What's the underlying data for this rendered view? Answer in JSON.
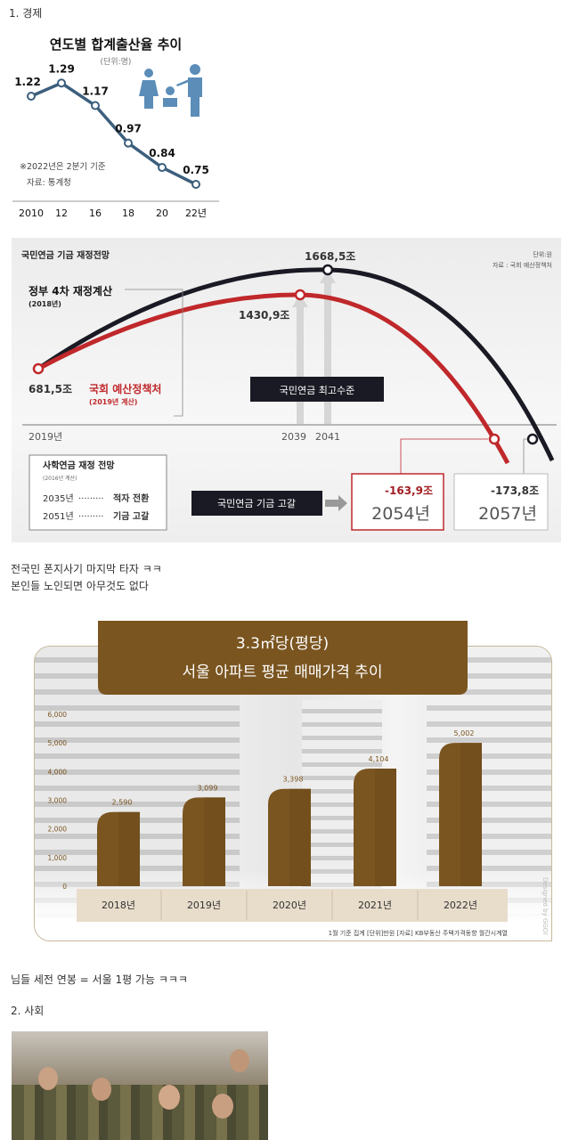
{
  "post": {
    "section1": "1. 경제",
    "comment1_line1": "전국민 폰지사기 마지막 타자 ㅋㅋ",
    "comment1_line2": "본인들 노인되면 아무것도 없다",
    "comment2": "님들 세전 연봉 = 서울 1평 가능 ㅋㅋㅋ",
    "section2": "2. 사회"
  },
  "chart_data": [
    {
      "type": "line",
      "title": "연도별 합계출산율 추이",
      "unit": "(단위:명)",
      "categories": [
        "2010",
        "12",
        "16",
        "18",
        "20",
        "22년"
      ],
      "values": [
        1.22,
        1.29,
        1.17,
        0.97,
        0.84,
        0.75
      ],
      "labels": [
        "1.22",
        "1.29",
        "1.17",
        "0.97",
        "0.84",
        "0.75"
      ],
      "note": "※2022년은 2분기 기준",
      "source": "자료: 통계청",
      "color": "#3d5f7d"
    },
    {
      "type": "line",
      "title": "국민연금 기금 재정전망",
      "unit": "단위:원",
      "source": "자료 : 국회 예산정책처",
      "series": [
        {
          "name": "정부 4차 재정계산",
          "sub": "(2018년)",
          "color": "#1a1a24",
          "points": [
            [
              2019,
              681.5
            ],
            [
              2041,
              1668.5
            ],
            [
              2057,
              -173.8
            ]
          ]
        },
        {
          "name": "국회 예산정책처",
          "sub": "(2019년 계산)",
          "color": "#c0282b",
          "points": [
            [
              2019,
              681.5
            ],
            [
              2039,
              1430.9
            ],
            [
              2054,
              -163.9
            ]
          ]
        }
      ],
      "labels": {
        "start": "681,5조",
        "peak_gov": "1668,5조",
        "peak_nabo": "1430,9조",
        "end_nabo_value": "-163,9조",
        "end_nabo_year": "2054년",
        "end_gov_value": "-173,8조",
        "end_gov_year": "2057년"
      },
      "x_ticks": [
        "2019년",
        "2039",
        "2041"
      ],
      "peak_label": "국민연금 최고수준",
      "depletion_label": "국민연금 기금 고갈",
      "private_box": {
        "title": "사학연금 재정 전망",
        "sub": "(2016년 계산)",
        "row1_year": "2035년",
        "row1_text": "적자 전환",
        "row2_year": "2051년",
        "row2_text": "기금 고갈"
      }
    },
    {
      "type": "bar",
      "title_line1": "3.3㎡당(평당)",
      "title_line2": "서울 아파트 평균 매매가격 추이",
      "categories": [
        "2018년",
        "2019년",
        "2020년",
        "2021년",
        "2022년"
      ],
      "values": [
        2590,
        3099,
        3398,
        4104,
        5002
      ],
      "value_labels": [
        "2,590",
        "3,099",
        "3,398",
        "4,104",
        "5,002"
      ],
      "y_ticks": [
        "0",
        "1,000",
        "2,000",
        "3,000",
        "4,000",
        "5,000",
        "6,000"
      ],
      "ylim": [
        0,
        6000
      ],
      "footer": "1월 기준 집계   [단위]만원   [자료] KB부동산 주택가격동향 월간시계열",
      "credit": "Designed by GGOI",
      "color": "#7a5520"
    }
  ]
}
